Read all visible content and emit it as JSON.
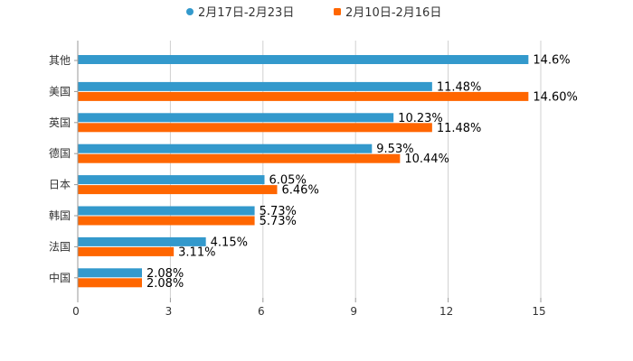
{
  "chart_data": {
    "type": "bar",
    "orientation": "horizontal",
    "title": "",
    "xlabel": "",
    "ylabel": "",
    "xlim": [
      0,
      15
    ],
    "x_ticks": [
      0,
      3,
      6,
      9,
      12,
      15
    ],
    "grid": true,
    "legend_position": "top-center",
    "categories": [
      "其他",
      "美国",
      "英国",
      "德国",
      "日本",
      "韩国",
      "法国",
      "中国"
    ],
    "series": [
      {
        "name": "2月17日-2月23日",
        "color": "#3399cc",
        "values": [
          14.6,
          11.48,
          10.23,
          9.53,
          6.05,
          5.73,
          4.15,
          2.08
        ],
        "labels": [
          "14.6%",
          "11.48%",
          "10.23%",
          "9.53%",
          "6.05%",
          "5.73%",
          "4.15%",
          "2.08%"
        ]
      },
      {
        "name": "2月10日-2月16日",
        "color": "#ff6600",
        "values": [
          null,
          14.6,
          11.48,
          10.44,
          6.46,
          5.73,
          3.11,
          2.08
        ],
        "labels": [
          "",
          "14.60%",
          "11.48%",
          "10.44%",
          "6.46%",
          "5.73%",
          "3.11%",
          "2.08%"
        ]
      }
    ]
  }
}
